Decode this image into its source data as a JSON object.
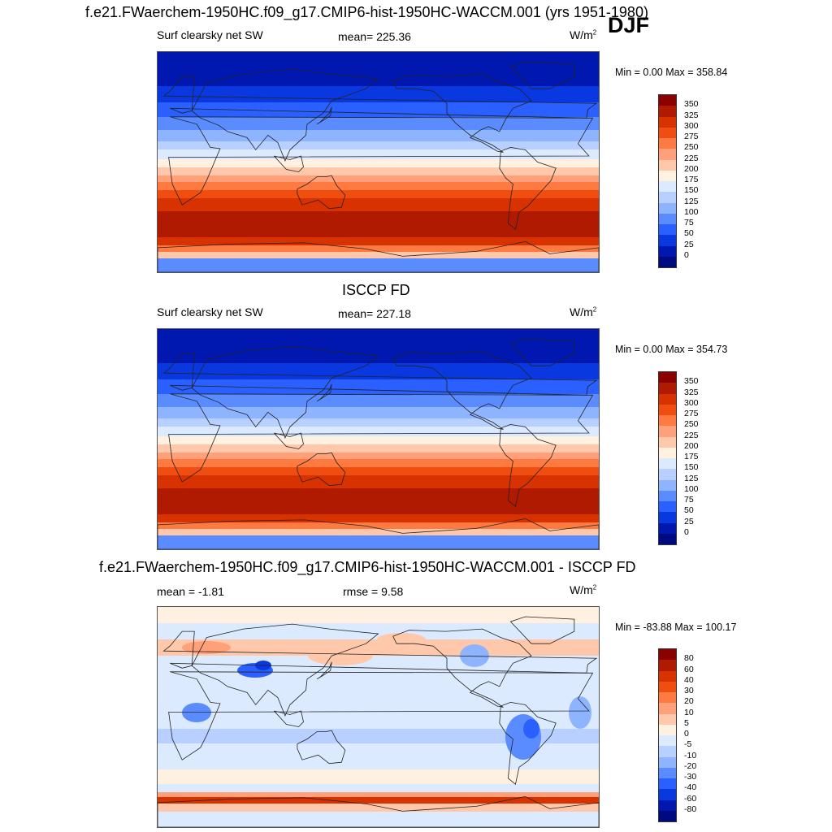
{
  "header": {
    "title": "f.e21.FWaerchem-1950HC.f09_g17.CMIP6-hist-1950HC-WACCM.001 (yrs 1951-1980)",
    "season": "DJF"
  },
  "panels": [
    {
      "title": "",
      "left_label": "Surf clearsky net SW",
      "center_label": "mean= 225.36",
      "unit": "W/m",
      "unit_sup": "2",
      "minmax": "Min =   0.00 Max = 358.84",
      "colorbar": {
        "labels": [
          "350",
          "325",
          "300",
          "275",
          "250",
          "225",
          "200",
          "175",
          "150",
          "125",
          "100",
          "75",
          "50",
          "25",
          "0"
        ],
        "colors": [
          "#8b0000",
          "#b01a00",
          "#d83200",
          "#f04e10",
          "#ff7a40",
          "#ffa07a",
          "#ffc8aa",
          "#fff0e0",
          "#dceaff",
          "#b8d0ff",
          "#8eb4ff",
          "#5a8cff",
          "#2a60ff",
          "#0a38e0",
          "#0018b0",
          "#000a80"
        ]
      },
      "map": {
        "variant": "sw_model"
      }
    },
    {
      "title": "ISCCP FD",
      "left_label": "Surf clearsky net SW",
      "center_label": "mean= 227.18",
      "unit": "W/m",
      "unit_sup": "2",
      "minmax": "Min =   0.00 Max = 354.73",
      "colorbar": {
        "labels": [
          "350",
          "325",
          "300",
          "275",
          "250",
          "225",
          "200",
          "175",
          "150",
          "125",
          "100",
          "75",
          "50",
          "25",
          "0"
        ],
        "colors": [
          "#8b0000",
          "#b01a00",
          "#d83200",
          "#f04e10",
          "#ff7a40",
          "#ffa07a",
          "#ffc8aa",
          "#fff0e0",
          "#dceaff",
          "#b8d0ff",
          "#8eb4ff",
          "#5a8cff",
          "#2a60ff",
          "#0a38e0",
          "#0018b0",
          "#000a80"
        ]
      },
      "map": {
        "variant": "sw_obs"
      }
    },
    {
      "title": "f.e21.FWaerchem-1950HC.f09_g17.CMIP6-hist-1950HC-WACCM.001 - ISCCP FD",
      "left_label": "mean =  -1.81",
      "center_label": "rmse =   9.58",
      "unit": "W/m",
      "unit_sup": "2",
      "minmax": "Min = -83.88 Max = 100.17",
      "colorbar": {
        "labels": [
          "80",
          "60",
          "40",
          "30",
          "20",
          "10",
          "5",
          "0",
          "-5",
          "-10",
          "-20",
          "-30",
          "-40",
          "-60",
          "-80"
        ],
        "colors": [
          "#8b0000",
          "#b01a00",
          "#d83200",
          "#f04e10",
          "#ff7a40",
          "#ffa07a",
          "#ffc8aa",
          "#fff0e0",
          "#dceaff",
          "#b8d0ff",
          "#8eb4ff",
          "#5a8cff",
          "#2a60ff",
          "#0a38e0",
          "#0018b0",
          "#000a80"
        ]
      },
      "map": {
        "variant": "diff"
      }
    }
  ]
}
